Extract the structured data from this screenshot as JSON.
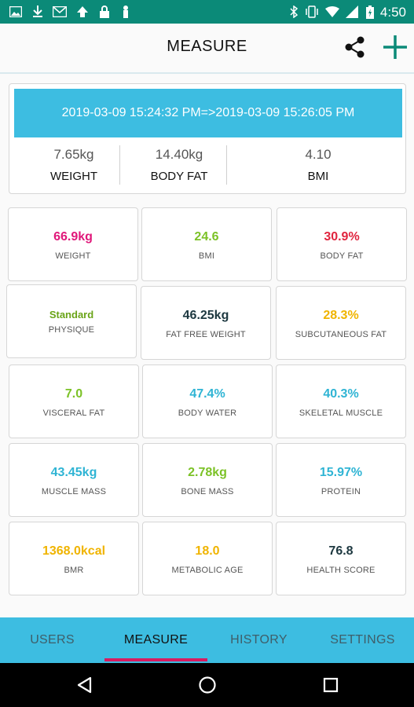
{
  "status_bar": {
    "time": "4:50",
    "left_icons": [
      "image-icon",
      "download-icon",
      "mail-icon",
      "upload-icon",
      "lock-icon",
      "person-icon"
    ],
    "right_icons": [
      "bluetooth-icon",
      "vibrate-icon",
      "wifi-icon",
      "signal-icon",
      "battery-charging-icon"
    ]
  },
  "appbar": {
    "title": "MEASURE"
  },
  "summary": {
    "range": "2019-03-09 15:24:32 PM=>2019-03-09 15:26:05 PM",
    "cells": [
      {
        "value": "7.65kg",
        "label": "WEIGHT"
      },
      {
        "value": "14.40kg",
        "label": "BODY FAT"
      },
      {
        "value": "4.10",
        "label": "BMI"
      }
    ]
  },
  "metrics": [
    {
      "value": "66.9kg",
      "label": "WEIGHT",
      "color": "#e0187a"
    },
    {
      "value": "24.6",
      "label": "BMI",
      "color": "#7cc227"
    },
    {
      "value": "30.9%",
      "label": "BODY FAT",
      "color": "#e0243e"
    },
    {
      "value": "Standard",
      "label": "PHYSIQUE",
      "color": "#6aa418"
    },
    {
      "value": "46.25kg",
      "label": "FAT FREE WEIGHT",
      "color": "#1d3840"
    },
    {
      "value": "28.3%",
      "label": "SUBCUTANEOUS FAT",
      "color": "#f0b400"
    },
    {
      "value": "7.0",
      "label": "VISCERAL FAT",
      "color": "#7cc227"
    },
    {
      "value": "47.4%",
      "label": "BODY WATER",
      "color": "#2fb4d4"
    },
    {
      "value": "40.3%",
      "label": "SKELETAL MUSCLE",
      "color": "#2fb4d4"
    },
    {
      "value": "43.45kg",
      "label": "MUSCLE MASS",
      "color": "#2fb4d4"
    },
    {
      "value": "2.78kg",
      "label": "BONE MASS",
      "color": "#7cc227"
    },
    {
      "value": "15.97%",
      "label": "PROTEIN",
      "color": "#2fb4d4"
    },
    {
      "value": "1368.0kcal",
      "label": "BMR",
      "color": "#f0b400"
    },
    {
      "value": "18.0",
      "label": "METABOLIC AGE",
      "color": "#f0b400"
    },
    {
      "value": "76.8",
      "label": "HEALTH SCORE",
      "color": "#1d3840"
    }
  ],
  "bottom_nav": {
    "tabs": [
      {
        "label": "USERS"
      },
      {
        "label": "MEASURE"
      },
      {
        "label": "HISTORY"
      },
      {
        "label": "SETTINGS"
      }
    ],
    "active": "MEASURE",
    "indicator_color": "#d81b60"
  },
  "system_nav": {
    "buttons": [
      "back-icon",
      "home-icon",
      "recents-icon"
    ]
  }
}
